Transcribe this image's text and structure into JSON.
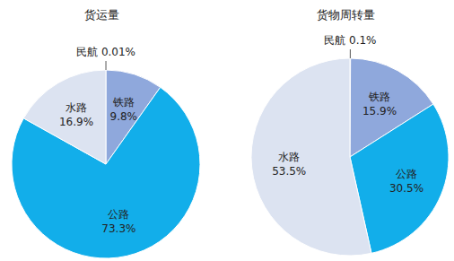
{
  "chart_data": [
    {
      "type": "pie",
      "title": "货运量",
      "categories": [
        "民航",
        "铁路",
        "公路",
        "水路"
      ],
      "values": [
        0.01,
        9.8,
        73.3,
        16.9
      ],
      "value_labels": [
        "0.01%",
        "9.8%",
        "73.3%",
        "16.9%"
      ],
      "colors": [
        "#5b73b5",
        "#8fa8dc",
        "#12aeea",
        "#dce3f1"
      ],
      "data_labels": true
    },
    {
      "type": "pie",
      "title": "货物周转量",
      "categories": [
        "民航",
        "铁路",
        "公路",
        "水路"
      ],
      "values": [
        0.1,
        15.9,
        30.5,
        53.5
      ],
      "value_labels": [
        "0.1%",
        "15.9%",
        "30.5%",
        "53.5%"
      ],
      "colors": [
        "#5b73b5",
        "#8fa8dc",
        "#12aeea",
        "#dce3f1"
      ],
      "data_labels": true
    }
  ]
}
